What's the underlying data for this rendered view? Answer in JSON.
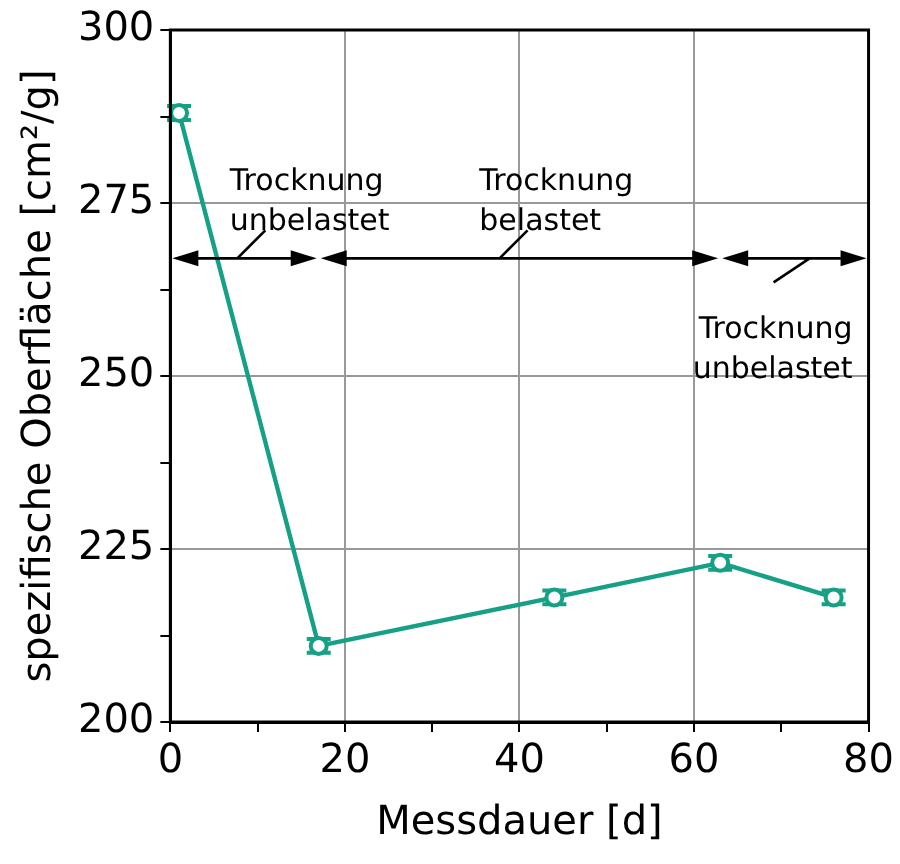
{
  "chart_data": {
    "type": "line",
    "xlabel": "Messdauer [d]",
    "ylabel": "spezifische Oberfläche [cm²/g]",
    "x": [
      1,
      17,
      44,
      63,
      76
    ],
    "series": [
      {
        "color": "#16a085",
        "values": [
          288,
          211,
          218,
          223,
          218
        ],
        "errors": [
          1,
          1,
          1,
          1,
          1
        ]
      }
    ],
    "xlim": [
      0,
      80
    ],
    "xticks": [
      0,
      {
        "value": 10,
        "label": null
      },
      20,
      {
        "value": 30,
        "label": null
      },
      40,
      {
        "value": 50,
        "label": null
      },
      60,
      {
        "value": 70,
        "label": null
      },
      80
    ],
    "ylim": [
      200,
      300
    ],
    "yticks": [
      200,
      {
        "value": 212.5,
        "label": null
      },
      225,
      {
        "value": 237.5,
        "label": null
      },
      250,
      {
        "value": 262.5,
        "label": null
      },
      275,
      {
        "value": 287.5,
        "label": null
      },
      300
    ],
    "annotations": [
      "Trocknung\nunbelastet",
      "Trocknung\nbelastet",
      "Trocknung\nunbelastet"
    ],
    "grid": true,
    "legend": false,
    "marker": "circle",
    "line_style": "solid"
  }
}
